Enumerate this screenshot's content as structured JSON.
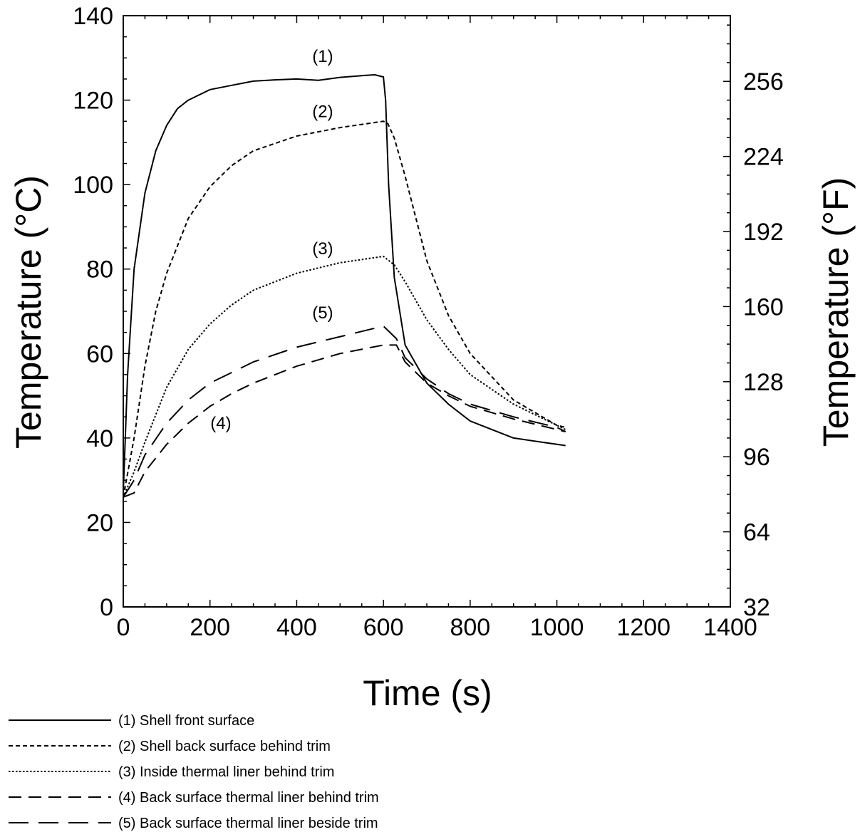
{
  "chart_data": {
    "type": "line",
    "title": "",
    "xlabel": "Time (s)",
    "ylabel": "Temperature (°C)",
    "y2label": "Temperature (°F)",
    "xlim": [
      0,
      1400
    ],
    "ylim": [
      0,
      140
    ],
    "y2lim": [
      32,
      284
    ],
    "x_ticks": [
      0,
      200,
      400,
      600,
      800,
      1000,
      1200,
      1400
    ],
    "y_ticks": [
      0,
      20,
      40,
      60,
      80,
      100,
      120,
      140
    ],
    "y2_ticks": [
      32,
      64,
      96,
      128,
      160,
      192,
      224,
      256
    ],
    "grid": false,
    "legend_position": "bottom-left",
    "series": [
      {
        "name": "(1) Shell front surface",
        "label": "(1)",
        "style": "solid",
        "x": [
          0,
          10,
          25,
          50,
          75,
          100,
          125,
          150,
          200,
          250,
          300,
          350,
          400,
          450,
          500,
          550,
          580,
          600,
          605,
          612,
          625,
          650,
          700,
          750,
          800,
          900,
          1000,
          1020
        ],
        "y": [
          27,
          55,
          80,
          98,
          108,
          114,
          118,
          120,
          122.5,
          123.5,
          124.5,
          124.8,
          125,
          124.7,
          125.4,
          125.8,
          126,
          125.5,
          120,
          100,
          78,
          62,
          53,
          48,
          44,
          40,
          38.5,
          38.2
        ]
      },
      {
        "name": "(2) Shell back surface behind trim",
        "label": "(2)",
        "style": "dashed",
        "x": [
          0,
          25,
          50,
          75,
          100,
          150,
          200,
          250,
          300,
          400,
          500,
          600,
          610,
          625,
          650,
          700,
          750,
          800,
          900,
          1000,
          1020
        ],
        "y": [
          26,
          40,
          57,
          70,
          79,
          92,
          99.5,
          104.5,
          108,
          111.5,
          113.5,
          115,
          114.5,
          111,
          102,
          82,
          69,
          60,
          49,
          43,
          42.5
        ]
      },
      {
        "name": "(3) Inside thermal liner behind trim",
        "label": "(3)",
        "style": "dotted",
        "x": [
          0,
          25,
          50,
          100,
          150,
          200,
          250,
          300,
          400,
          500,
          600,
          625,
          650,
          700,
          750,
          800,
          900,
          1000,
          1020
        ],
        "y": [
          26,
          32,
          39,
          52,
          61,
          67,
          71.5,
          75,
          79,
          81.5,
          83,
          81,
          77,
          68,
          61,
          55,
          48,
          43,
          42
        ]
      },
      {
        "name": "(4) Back surface thermal liner behind trim",
        "label": "(4)",
        "style": "long-dashed",
        "x": [
          0,
          25,
          50,
          100,
          150,
          200,
          250,
          300,
          400,
          500,
          600,
          630,
          650,
          700,
          750,
          800,
          900,
          1000,
          1020
        ],
        "y": [
          26,
          27,
          32,
          38.5,
          43.5,
          47.5,
          50.5,
          53,
          57,
          60,
          62,
          62,
          58,
          53,
          50,
          47.5,
          44.5,
          42,
          41.5
        ]
      },
      {
        "name": "(5) Back surface thermal liner beside trim",
        "label": "(5)",
        "style": "extra-long-dashed",
        "x": [
          0,
          25,
          50,
          100,
          150,
          200,
          250,
          300,
          400,
          500,
          600,
          630,
          650,
          700,
          750,
          800,
          900,
          1000,
          1020
        ],
        "y": [
          26,
          30,
          36,
          43.5,
          49,
          53,
          55.5,
          58,
          61.5,
          64,
          66.5,
          63.5,
          59,
          54,
          50.5,
          48,
          45,
          42.5,
          41.5
        ]
      }
    ],
    "curve_labels": [
      {
        "text": "(1)",
        "x": 460,
        "y": 129
      },
      {
        "text": "(2)",
        "x": 460,
        "y": 116
      },
      {
        "text": "(3)",
        "x": 460,
        "y": 83.5
      },
      {
        "text": "(5)",
        "x": 460,
        "y": 68.3
      },
      {
        "text": "(4)",
        "x": 225,
        "y": 42.2
      }
    ]
  }
}
